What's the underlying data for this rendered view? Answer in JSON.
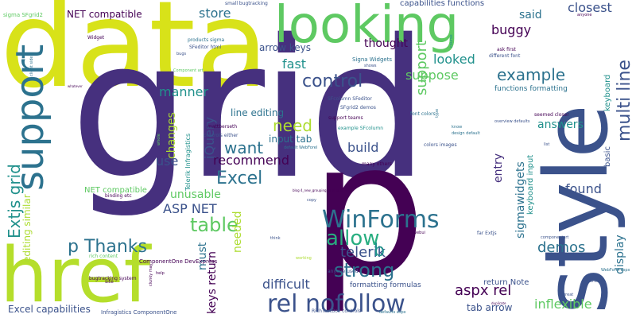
{
  "colors": {
    "background": "#ffffff",
    "palette": [
      "#440154",
      "#46307e",
      "#3b528b",
      "#2c728e",
      "#21918c",
      "#28ae80",
      "#5ec962",
      "#addc30",
      "#fde725"
    ]
  },
  "words": [
    {
      "text": "data",
      "size": 150,
      "color": "#d8e219"
    },
    {
      "text": "grid",
      "size": 240,
      "color": "#46307e"
    },
    {
      "text": "p",
      "size": 230,
      "color": "#440154"
    },
    {
      "text": "href",
      "size": 95,
      "color": "#b5de2b"
    },
    {
      "text": "style",
      "size": 110,
      "color": "#3b528b"
    },
    {
      "text": "looking",
      "size": 64,
      "color": "#5ec962"
    },
    {
      "text": "support",
      "size": 48,
      "color": "#2c728e"
    },
    {
      "text": "rel nofollow",
      "size": 30,
      "color": "#3b528b"
    },
    {
      "text": "WinForms",
      "size": 30,
      "color": "#2c728e"
    },
    {
      "text": "allow",
      "size": 26,
      "color": "#28ae80"
    },
    {
      "text": "strong",
      "size": 24,
      "color": "#2c728e"
    },
    {
      "text": "table",
      "size": 24,
      "color": "#5ec962"
    },
    {
      "text": "Excel",
      "size": 22,
      "color": "#2c728e"
    },
    {
      "text": "p Thanks",
      "size": 22,
      "color": "#2c728e"
    },
    {
      "text": "control",
      "size": 22,
      "color": "#3b528b"
    },
    {
      "text": "multi line",
      "size": 22,
      "color": "#3b528b"
    },
    {
      "text": "Extjs grid",
      "size": 20,
      "color": "#21918c"
    },
    {
      "text": "want",
      "size": 20,
      "color": "#2c728e"
    },
    {
      "text": "need",
      "size": 20,
      "color": "#addc30"
    },
    {
      "text": "example",
      "size": 20,
      "color": "#2c728e"
    },
    {
      "text": "store",
      "size": 16,
      "color": "#2c728e"
    },
    {
      "text": "closest",
      "size": 16,
      "color": "#3b528b"
    },
    {
      "text": "manner",
      "size": 16,
      "color": "#21918c"
    },
    {
      "text": "buggy",
      "size": 16,
      "color": "#440154"
    },
    {
      "text": "said",
      "size": 14,
      "color": "#2c728e"
    },
    {
      "text": "fast",
      "size": 16,
      "color": "#21918c"
    },
    {
      "text": "looked",
      "size": 16,
      "color": "#21918c"
    },
    {
      "text": "suppose",
      "size": 16,
      "color": "#5ec962"
    },
    {
      "text": "thought",
      "size": 14,
      "color": "#440154"
    },
    {
      "text": "arrow keys",
      "size": 12,
      "color": "#3b528b"
    },
    {
      "text": "NET compatible",
      "size": 12,
      "color": "#440154"
    },
    {
      "text": "capabilities functions",
      "size": 10,
      "color": "#3b528b"
    },
    {
      "text": "support",
      "size": 18,
      "color": "#5ec962"
    },
    {
      "text": "jQuery",
      "size": 16,
      "color": "#3b528b"
    },
    {
      "text": "recommend",
      "size": 16,
      "color": "#440154"
    },
    {
      "text": "input tab",
      "size": 12,
      "color": "#2c728e"
    },
    {
      "text": "build",
      "size": 16,
      "color": "#3b528b"
    },
    {
      "text": "line editing",
      "size": 12,
      "color": "#2c728e"
    },
    {
      "text": "answers",
      "size": 14,
      "color": "#21918c"
    },
    {
      "text": "use",
      "size": 16,
      "color": "#3b528b"
    },
    {
      "text": "ASP NET",
      "size": 16,
      "color": "#3b528b"
    },
    {
      "text": "unusable",
      "size": 14,
      "color": "#5ec962"
    },
    {
      "text": "changes",
      "size": 14,
      "color": "#addc30"
    },
    {
      "text": "found",
      "size": 16,
      "color": "#3b528b"
    },
    {
      "text": "telerik",
      "size": 18,
      "color": "#3b528b"
    },
    {
      "text": "demos",
      "size": 18,
      "color": "#2c728e"
    },
    {
      "text": "b",
      "size": 22,
      "color": "#21918c"
    },
    {
      "text": "entry",
      "size": 14,
      "color": "#46307e"
    },
    {
      "text": "sigmawidgets",
      "size": 14,
      "color": "#2c728e"
    },
    {
      "text": "display",
      "size": 14,
      "color": "#2c728e"
    },
    {
      "text": "difficult",
      "size": 16,
      "color": "#3b528b"
    },
    {
      "text": "aspx rel",
      "size": 18,
      "color": "#440154"
    },
    {
      "text": "inflexible",
      "size": 16,
      "color": "#5ec962"
    },
    {
      "text": "keys return",
      "size": 14,
      "color": "#440154"
    },
    {
      "text": "must",
      "size": 14,
      "color": "#2c728e"
    },
    {
      "text": "needed",
      "size": 14,
      "color": "#addc30"
    },
    {
      "text": "Excel capabilities",
      "size": 12,
      "color": "#3b528b"
    },
    {
      "text": "editing similar",
      "size": 12,
      "color": "#addc30"
    },
    {
      "text": "keyboard input",
      "size": 10,
      "color": "#21918c"
    },
    {
      "text": "basic",
      "size": 10,
      "color": "#3b528b"
    },
    {
      "text": "keyboard",
      "size": 10,
      "color": "#21918c"
    },
    {
      "text": "functions formatting",
      "size": 9,
      "color": "#2c728e"
    },
    {
      "text": "tab arrow",
      "size": 12,
      "color": "#3b528b"
    },
    {
      "text": "return Note",
      "size": 10,
      "color": "#3b528b"
    },
    {
      "text": "formatting formulas",
      "size": 9,
      "color": "#3b528b"
    },
    {
      "text": "NET compatible",
      "size": 10,
      "color": "#5ec962"
    },
    {
      "text": "Signa Widgets",
      "size": 7,
      "color": "#2c728e"
    },
    {
      "text": "products sigma",
      "size": 6,
      "color": "#2c728e"
    },
    {
      "text": "SFeditor html",
      "size": 6,
      "color": "#3b528b"
    },
    {
      "text": "SFcolumn SFeditor",
      "size": 6,
      "color": "#3b528b"
    },
    {
      "text": "SFgrid2 demos",
      "size": 6,
      "color": "#3b528b"
    },
    {
      "text": "support teams",
      "size": 6,
      "color": "#440154"
    },
    {
      "text": "example SFcolumn",
      "size": 6,
      "color": "#21918c"
    },
    {
      "text": "colors images",
      "size": 6,
      "color": "#3b528b"
    },
    {
      "text": "many others",
      "size": 6,
      "color": "#440154"
    },
    {
      "text": "font colors",
      "size": 6,
      "color": "#2c728e"
    },
    {
      "text": "design default",
      "size": 5,
      "color": "#2c728e"
    },
    {
      "text": "Telerik Infragistics",
      "size": 8,
      "color": "#21918c"
    },
    {
      "text": "sigma SFgrid2",
      "size": 7,
      "color": "#5ec962"
    },
    {
      "text": "small bugtracking",
      "size": 6,
      "color": "#3b528b"
    },
    {
      "text": "Widget",
      "size": 6,
      "color": "#440154"
    },
    {
      "text": "client side",
      "size": 5,
      "color": "#2c728e"
    },
    {
      "text": "bugs",
      "size": 5,
      "color": "#3b528b"
    },
    {
      "text": "Component art",
      "size": 5,
      "color": "#5ec962"
    },
    {
      "text": "mattberseth",
      "size": 6,
      "color": "#440154"
    },
    {
      "text": "controls either",
      "size": 6,
      "color": "#3b528b"
    },
    {
      "text": "default WebForel",
      "size": 5,
      "color": "#2c728e"
    },
    {
      "text": "binding etc",
      "size": 6,
      "color": "#440154"
    },
    {
      "text": "ask first",
      "size": 6,
      "color": "#440154"
    },
    {
      "text": "different font",
      "size": 6,
      "color": "#3b528b"
    },
    {
      "text": "seemed closer",
      "size": 6,
      "color": "#440154"
    },
    {
      "text": "overview defaults",
      "size": 5,
      "color": "#3b528b"
    },
    {
      "text": "ComponentOne DevExpress",
      "size": 7,
      "color": "#440154"
    },
    {
      "text": "Infragistics ComponentOne",
      "size": 7,
      "color": "#3b528b"
    },
    {
      "text": "bugtracking system",
      "size": 6,
      "color": "#440154"
    },
    {
      "text": "rich content",
      "size": 6,
      "color": "#5ec962"
    },
    {
      "text": "anyone used",
      "size": 6,
      "color": "#3b528b"
    },
    {
      "text": "RichTextBox controls",
      "size": 6,
      "color": "#3b528b"
    },
    {
      "text": "defaults aspx",
      "size": 5,
      "color": "#2c728e"
    },
    {
      "text": "far Extjs",
      "size": 6,
      "color": "#3b528b"
    },
    {
      "text": "componentart",
      "size": 5,
      "color": "#3b528b"
    },
    {
      "text": "WebForel aspx",
      "size": 5,
      "color": "#2c728e"
    },
    {
      "text": "overview",
      "size": 5,
      "color": "#3b528b"
    },
    {
      "text": "webui",
      "size": 5,
      "color": "#440154"
    },
    {
      "text": "great",
      "size": 5,
      "color": "#3b528b"
    },
    {
      "text": "working",
      "size": 5,
      "color": "#addc30"
    },
    {
      "text": "think",
      "size": 5,
      "color": "#3b528b"
    },
    {
      "text": "help",
      "size": 5,
      "color": "#440154"
    },
    {
      "text": "site",
      "size": 6,
      "color": "#440154"
    },
    {
      "text": "copy",
      "size": 5,
      "color": "#3b528b"
    },
    {
      "text": "blog 4_new_grouping_grid_skinz_visit",
      "size": 4,
      "color": "#440154"
    },
    {
      "text": "know",
      "size": 5,
      "color": "#2c728e"
    },
    {
      "text": "list",
      "size": 5,
      "color": "#3b528b"
    },
    {
      "text": "anyone",
      "size": 5,
      "color": "#440154"
    },
    {
      "text": "shows",
      "size": 5,
      "color": "#3b528b"
    },
    {
      "text": "course",
      "size": 5,
      "color": "#21918c"
    },
    {
      "text": "whatever",
      "size": 4,
      "color": "#440154"
    },
    {
      "text": "whole",
      "size": 5,
      "color": "#5ec962"
    },
    {
      "text": "clunky may",
      "size": 5,
      "color": "#440154"
    },
    {
      "text": "type",
      "size": 5,
      "color": "#2c728e"
    },
    {
      "text": "duplicate",
      "size": 4,
      "color": "#440154"
    }
  ]
}
